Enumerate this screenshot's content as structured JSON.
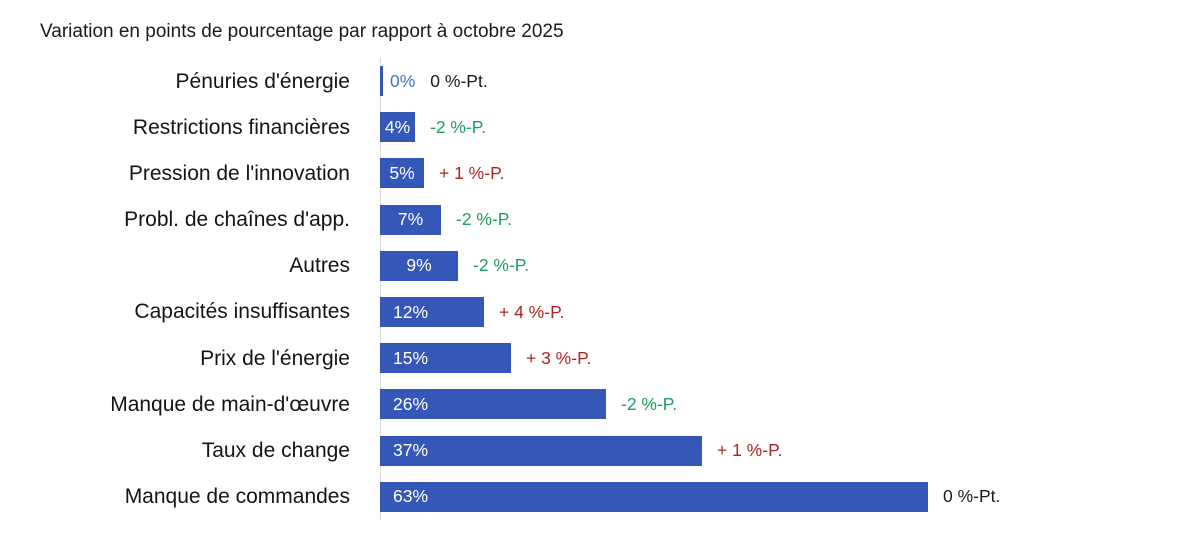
{
  "colors": {
    "bar": "#3557B8",
    "value_label_inside": "#FFFFFF",
    "value_label_zero": "#4472C4",
    "change_positive": "#B02222",
    "change_negative": "#1B9E5F",
    "change_zero": "#1A1A1A",
    "axis_line": "#D9D9D9",
    "text": "#1A1A1A",
    "background": "#FFFFFF"
  },
  "chart_data": {
    "type": "bar",
    "orientation": "horizontal",
    "title": "Variation en points de pourcentage par rapport à octobre 2025",
    "categories": [
      "Pénuries d'énergie",
      "Restrictions financières",
      "Pression de l'innovation",
      "Probl. de chaînes d'app.",
      "Autres",
      "Capacités insuffisantes",
      "Prix de l'énergie",
      "Manque de main-d'œuvre",
      "Taux de change",
      "Manque de commandes"
    ],
    "values": [
      0,
      4,
      5,
      7,
      9,
      12,
      15,
      26,
      37,
      63
    ],
    "value_labels": [
      "0%",
      "4%",
      "5%",
      "7%",
      "9%",
      "12%",
      "15%",
      "26%",
      "37%",
      "63%"
    ],
    "changes": [
      0,
      -2,
      1,
      -2,
      -2,
      4,
      3,
      -2,
      1,
      0
    ],
    "change_labels": [
      "0 %-Pt.",
      "-2 %-P.",
      "+ 1 %-P.",
      "-2 %-P.",
      "-2 %-P.",
      "+ 4 %-P.",
      "+ 3 %-P.",
      "-2 %-P.",
      "+ 1 %-P.",
      "0 %-Pt."
    ],
    "xlim": [
      0,
      94
    ],
    "grid": false,
    "legend": false
  }
}
